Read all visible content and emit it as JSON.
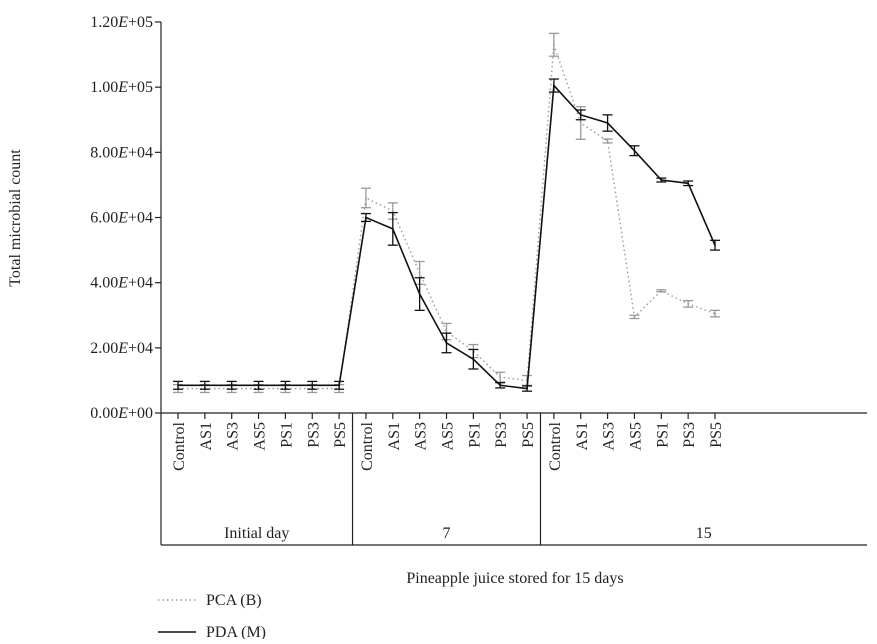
{
  "chart_data": {
    "type": "line",
    "title": "",
    "xlabel": "Pineapple juice stored for 15 days",
    "ylabel": "Total microbial count",
    "ylim": [
      0,
      120000
    ],
    "yticks": [
      {
        "value": 0,
        "label": "0.00E+00"
      },
      {
        "value": 20000,
        "label": "2.00E+04"
      },
      {
        "value": 40000,
        "label": "4.00E+04"
      },
      {
        "value": 60000,
        "label": "6.00E+04"
      },
      {
        "value": 80000,
        "label": "8.00E+04"
      },
      {
        "value": 100000,
        "label": "1.00E+05"
      },
      {
        "value": 120000,
        "label": "1.20E+05"
      }
    ],
    "groups": [
      {
        "label": "Initial day",
        "categories": [
          "Control",
          "AS1",
          "AS3",
          "AS5",
          "PS1",
          "PS3",
          "PS5"
        ]
      },
      {
        "label": "7",
        "categories": [
          "Control",
          "AS1",
          "AS3",
          "AS5",
          "PS1",
          "PS3",
          "PS5"
        ]
      },
      {
        "label": "15",
        "categories": [
          "Control",
          "AS1",
          "AS3",
          "AS5",
          "PS1",
          "PS3",
          "PS5"
        ]
      }
    ],
    "series": [
      {
        "name": "PCA (B)",
        "color": "#999999",
        "style": "dotted",
        "values": [
          7500,
          7500,
          7500,
          7500,
          7500,
          7500,
          7500,
          66000,
          62000,
          43000,
          25000,
          19000,
          11000,
          10000,
          113000,
          89000,
          83500,
          29500,
          37500,
          33500,
          30500
        ],
        "errors": [
          1200,
          1200,
          1200,
          1200,
          1200,
          1200,
          1200,
          3000,
          2500,
          3500,
          2500,
          2000,
          1500,
          1500,
          3500,
          5000,
          600,
          500,
          300,
          1000,
          1000
        ]
      },
      {
        "name": "PDA (M)",
        "color": "#111111",
        "style": "solid",
        "values": [
          8500,
          8500,
          8500,
          8500,
          8500,
          8500,
          8500,
          60000,
          56500,
          36500,
          21500,
          16500,
          8500,
          7500,
          100500,
          91500,
          89000,
          80500,
          71500,
          70500,
          51500
        ],
        "errors": [
          1200,
          1200,
          1200,
          1200,
          1200,
          1200,
          1200,
          1200,
          5000,
          5000,
          3000,
          3000,
          800,
          800,
          2000,
          1500,
          2500,
          1500,
          600,
          700,
          1500
        ]
      }
    ],
    "legend": {
      "placement": "bottom-left"
    }
  }
}
